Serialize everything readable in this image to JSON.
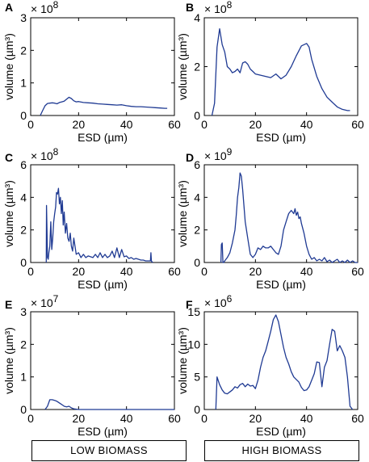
{
  "footer": {
    "low_label": "LOW BIOMASS",
    "high_label": "HIGH BIOMASS"
  },
  "series_color": "#1f3a93",
  "chart_data": [
    {
      "panel": "A",
      "type": "line",
      "xlabel": "ESD (µm)",
      "ylabel": "volume (µm³)",
      "multiplier": "× 10⁸",
      "mult_base": "× 10",
      "mult_exp": "8",
      "xlim": [
        0,
        60
      ],
      "ylim": [
        0,
        3
      ],
      "xticks": [
        0,
        20,
        40,
        60
      ],
      "yticks": [
        0,
        1,
        2,
        3
      ],
      "series": [
        {
          "x": [
            4,
            5,
            6,
            7,
            8,
            9,
            10,
            11,
            12,
            13,
            14,
            15,
            16,
            17,
            18,
            19,
            20,
            22,
            24,
            26,
            28,
            30,
            32,
            34,
            36,
            38,
            40,
            42,
            44,
            46,
            48,
            50,
            52,
            54,
            56,
            57
          ],
          "y": [
            0,
            0.15,
            0.3,
            0.37,
            0.38,
            0.39,
            0.38,
            0.36,
            0.4,
            0.42,
            0.44,
            0.5,
            0.56,
            0.52,
            0.45,
            0.42,
            0.43,
            0.4,
            0.39,
            0.38,
            0.36,
            0.35,
            0.34,
            0.33,
            0.32,
            0.33,
            0.3,
            0.28,
            0.27,
            0.27,
            0.26,
            0.25,
            0.24,
            0.23,
            0.22,
            0.22
          ]
        }
      ]
    },
    {
      "panel": "B",
      "type": "line",
      "xlabel": "ESD (µm)",
      "ylabel": "volume (µm³)",
      "multiplier": "× 10⁸",
      "mult_base": "× 10",
      "mult_exp": "8",
      "xlim": [
        0,
        60
      ],
      "ylim": [
        0,
        4
      ],
      "xticks": [
        0,
        20,
        40,
        60
      ],
      "yticks": [
        0,
        2,
        4
      ],
      "series": [
        {
          "x": [
            3,
            4,
            5,
            6,
            7,
            8,
            9,
            10,
            11,
            12,
            13,
            14,
            15,
            16,
            17,
            18,
            19,
            20,
            22,
            24,
            26,
            28,
            30,
            32,
            34,
            36,
            38,
            40,
            41,
            42,
            44,
            46,
            48,
            50,
            52,
            54,
            56,
            57
          ],
          "y": [
            0,
            0.5,
            2.8,
            3.55,
            2.9,
            2.6,
            2.0,
            1.9,
            1.75,
            1.8,
            1.9,
            1.75,
            2.15,
            2.2,
            2.1,
            1.9,
            1.8,
            1.7,
            1.65,
            1.6,
            1.55,
            1.7,
            1.5,
            1.65,
            2.0,
            2.45,
            2.85,
            2.95,
            2.8,
            2.3,
            1.6,
            1.1,
            0.75,
            0.55,
            0.35,
            0.25,
            0.2,
            0.2
          ]
        }
      ]
    },
    {
      "panel": "C",
      "type": "line",
      "xlabel": "ESD (µm)",
      "ylabel": "volume (µm³)",
      "multiplier": "× 10⁸",
      "mult_base": "× 10",
      "mult_exp": "8",
      "xlim": [
        0,
        60
      ],
      "ylim": [
        0,
        6
      ],
      "xticks": [
        0,
        20,
        40,
        60
      ],
      "yticks": [
        0,
        2,
        4,
        6
      ],
      "series": [
        {
          "x": [
            6.5,
            6.6,
            6.8,
            7.0,
            7.3,
            7.6,
            8.0,
            8.4,
            8.8,
            9.2,
            9.6,
            10,
            10.4,
            10.8,
            11.2,
            11.6,
            12,
            12.4,
            12.8,
            13.2,
            13.6,
            14,
            14.5,
            15,
            15.5,
            16,
            16.5,
            17,
            17.5,
            18,
            19,
            20,
            21,
            22,
            23,
            24,
            25,
            26,
            27,
            28,
            29,
            30,
            31,
            32,
            33,
            34,
            35,
            36,
            37,
            38,
            39,
            40,
            41,
            42,
            43,
            44,
            45,
            46,
            47,
            48,
            49,
            50,
            50.2,
            50.4,
            50.6,
            51
          ],
          "y": [
            0,
            3.5,
            2.0,
            0.3,
            0.2,
            0.6,
            1.0,
            2.5,
            0.8,
            1.5,
            2.5,
            3.0,
            3.4,
            4.3,
            4.2,
            4.55,
            3.6,
            4.0,
            3.0,
            3.8,
            2.3,
            3.1,
            1.8,
            2.4,
            1.5,
            1.3,
            1.8,
            1.0,
            0.7,
            1.5,
            0.5,
            0.6,
            0.3,
            0.5,
            0.3,
            0.4,
            0.35,
            0.3,
            0.5,
            0.3,
            0.6,
            0.3,
            0.5,
            0.3,
            0.4,
            0.7,
            0.3,
            0.9,
            0.3,
            0.8,
            0.35,
            0.4,
            0.25,
            0.3,
            0.2,
            0.25,
            0.2,
            0.15,
            0.15,
            0.1,
            0.1,
            0.1,
            0.6,
            0.1,
            0.05,
            0
          ]
        }
      ]
    },
    {
      "panel": "D",
      "type": "line",
      "xlabel": "ESD (µm)",
      "ylabel": "volume (µm³)",
      "multiplier": "× 10⁹",
      "mult_base": "× 10",
      "mult_exp": "9",
      "xlim": [
        0,
        60
      ],
      "ylim": [
        0,
        6
      ],
      "xticks": [
        0,
        20,
        40,
        60
      ],
      "yticks": [
        0,
        2,
        4,
        6
      ],
      "series": [
        {
          "x": [
            6.5,
            6.7,
            7,
            7.3,
            7.6,
            8,
            9,
            10,
            11,
            12,
            12.5,
            13,
            13.5,
            14,
            14.5,
            15,
            15.5,
            16,
            17,
            18,
            19,
            20,
            21,
            22,
            23,
            24,
            25,
            26,
            27,
            28,
            29,
            30,
            31,
            32,
            33,
            34,
            35,
            35.5,
            36,
            36.5,
            37,
            37.5,
            38,
            39,
            40,
            41,
            42,
            43,
            44,
            45,
            46,
            47,
            48,
            49,
            50,
            51,
            52,
            53,
            54,
            55,
            56,
            57,
            58,
            59,
            60
          ],
          "y": [
            0,
            1.1,
            1.2,
            0,
            0,
            0.1,
            0.3,
            0.6,
            1.2,
            2.0,
            2.9,
            4.0,
            4.6,
            5.5,
            5.3,
            4.5,
            3.5,
            2.5,
            1.5,
            0.5,
            0.3,
            0.5,
            0.9,
            0.8,
            1.0,
            0.9,
            0.9,
            1.0,
            0.8,
            0.6,
            0.5,
            1.0,
            2.0,
            2.5,
            3.0,
            3.2,
            3.0,
            3.3,
            2.9,
            3.1,
            2.7,
            2.8,
            2.4,
            1.8,
            1.0,
            0.5,
            0.2,
            0.3,
            0.1,
            0.2,
            0.1,
            0.3,
            0.05,
            0.15,
            0,
            0.1,
            0.2,
            0,
            0.1,
            0,
            0.15,
            0,
            0.1,
            0,
            0
          ]
        }
      ]
    },
    {
      "panel": "E",
      "type": "line",
      "xlabel": "ESD (µm)",
      "ylabel": "volume (µm³)",
      "multiplier": "× 10⁷",
      "mult_base": "× 10",
      "mult_exp": "7",
      "xlim": [
        0,
        60
      ],
      "ylim": [
        0,
        3
      ],
      "xticks": [
        0,
        20,
        40,
        60
      ],
      "yticks": [
        0,
        1,
        2,
        3
      ],
      "series": [
        {
          "x": [
            6,
            7,
            8,
            9,
            10,
            11,
            12,
            13,
            14,
            15,
            16,
            17,
            18,
            20,
            30,
            40,
            50,
            60
          ],
          "y": [
            0,
            0.1,
            0.3,
            0.3,
            0.28,
            0.25,
            0.2,
            0.15,
            0.1,
            0.08,
            0.1,
            0.05,
            0.02,
            0,
            0,
            0,
            0,
            0
          ]
        }
      ]
    },
    {
      "panel": "F",
      "type": "line",
      "xlabel": "ESD (µm)",
      "ylabel": "volume (µm³)",
      "multiplier": "× 10⁶",
      "mult_base": "× 10",
      "mult_exp": "6",
      "xlim": [
        0,
        60
      ],
      "ylim": [
        0,
        15
      ],
      "xticks": [
        0,
        20,
        40,
        60
      ],
      "yticks": [
        0,
        5,
        10,
        15
      ],
      "series": [
        {
          "x": [
            4.5,
            5,
            6,
            7,
            8,
            9,
            10,
            11,
            12,
            13,
            14,
            15,
            16,
            17,
            18,
            19,
            20,
            21,
            22,
            23,
            24,
            25,
            26,
            27,
            28,
            29,
            30,
            31,
            32,
            33,
            34,
            35,
            36,
            37,
            38,
            39,
            40,
            41,
            42,
            43,
            44,
            45,
            46,
            47,
            48,
            49,
            50,
            51,
            52,
            53,
            54,
            55,
            56,
            57,
            58
          ],
          "y": [
            0,
            5,
            3.8,
            3.0,
            2.5,
            2.4,
            2.7,
            3.0,
            3.5,
            3.3,
            3.8,
            4.0,
            3.5,
            3.9,
            3.6,
            3.7,
            3.2,
            4.5,
            6.5,
            8.0,
            9.0,
            10.5,
            12.0,
            13.8,
            14.5,
            13.5,
            11.5,
            9.5,
            8.0,
            7.0,
            5.8,
            5.0,
            4.6,
            4.2,
            3.4,
            2.9,
            3.0,
            3.5,
            4.5,
            5.5,
            7.3,
            7.2,
            3.5,
            6.5,
            7.5,
            10.0,
            12.3,
            12.0,
            9.0,
            9.8,
            9.0,
            8.0,
            5.0,
            0.5,
            0
          ]
        }
      ]
    }
  ]
}
